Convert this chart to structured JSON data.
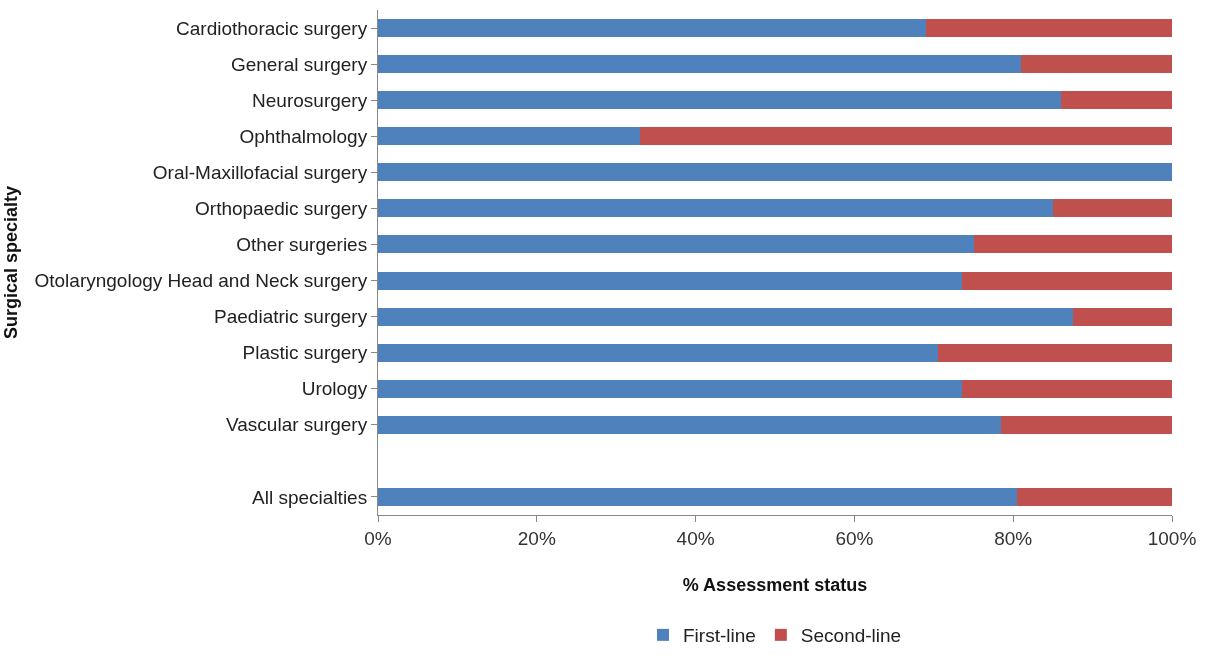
{
  "chart_data": {
    "type": "bar",
    "orientation": "horizontal",
    "stacked": true,
    "xlabel": "% Assessment status",
    "ylabel": "Surgical specialty",
    "categories": [
      "Cardiothoracic surgery",
      "General surgery",
      "Neurosurgery",
      "Ophthalmology",
      "Oral-Maxillofacial surgery",
      "Orthopaedic surgery",
      "Other surgeries",
      "Otolaryngology Head and Neck surgery",
      "Paediatric surgery",
      "Plastic surgery",
      "Urology",
      "Vascular surgery",
      null,
      "All specialties"
    ],
    "series": [
      {
        "name": "First-line",
        "color": "#4f81bd",
        "values": [
          69,
          81,
          86,
          33,
          100,
          85,
          75,
          73.5,
          87.5,
          70.5,
          73.5,
          78.5,
          null,
          80.5
        ]
      },
      {
        "name": "Second-line",
        "color": "#c0504d",
        "values": [
          31,
          19,
          14,
          67,
          0,
          15,
          25,
          26.5,
          12.5,
          29.5,
          26.5,
          21.5,
          null,
          19.5
        ]
      }
    ],
    "xlim": [
      0,
      100
    ],
    "xticks": [
      {
        "value": 0,
        "label": "0%"
      },
      {
        "value": 20,
        "label": "20%"
      },
      {
        "value": 40,
        "label": "40%"
      },
      {
        "value": 60,
        "label": "60%"
      },
      {
        "value": 80,
        "label": "80%"
      },
      {
        "value": 100,
        "label": "100%"
      }
    ],
    "grid": false,
    "legend": "bottom"
  }
}
